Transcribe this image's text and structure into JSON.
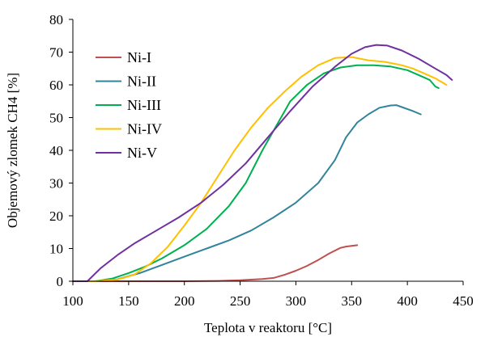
{
  "chart_data": {
    "type": "line",
    "xlabel": "Teplota v reaktoru [°C]",
    "ylabel": "Objemový zlomek CH4 [%]",
    "xlim": [
      100,
      450
    ],
    "ylim": [
      0,
      80
    ],
    "xticks": [
      100,
      150,
      200,
      250,
      300,
      350,
      400,
      450
    ],
    "yticks": [
      0,
      10,
      20,
      30,
      40,
      50,
      60,
      70,
      80
    ],
    "grid": false,
    "legend": "top-left",
    "series": [
      {
        "name": "Ni-I",
        "color": "#C0504D",
        "points": [
          [
            100,
            0
          ],
          [
            150,
            0
          ],
          [
            200,
            0
          ],
          [
            230,
            0.1
          ],
          [
            250,
            0.3
          ],
          [
            270,
            0.7
          ],
          [
            280,
            1.0
          ],
          [
            290,
            2.0
          ],
          [
            300,
            3.2
          ],
          [
            310,
            4.7
          ],
          [
            320,
            6.5
          ],
          [
            330,
            8.5
          ],
          [
            340,
            10.2
          ],
          [
            345,
            10.6
          ],
          [
            355,
            11
          ]
        ]
      },
      {
        "name": "Ni-II",
        "color": "#31849B",
        "points": [
          [
            100,
            0
          ],
          [
            120,
            0
          ],
          [
            140,
            0.6
          ],
          [
            160,
            2.5
          ],
          [
            180,
            5.0
          ],
          [
            200,
            7.5
          ],
          [
            220,
            10.0
          ],
          [
            240,
            12.5
          ],
          [
            260,
            15.5
          ],
          [
            280,
            19.5
          ],
          [
            300,
            24.0
          ],
          [
            320,
            30.0
          ],
          [
            335,
            37.0
          ],
          [
            345,
            44.0
          ],
          [
            355,
            48.5
          ],
          [
            365,
            51.0
          ],
          [
            375,
            53.0
          ],
          [
            385,
            53.7
          ],
          [
            390,
            53.8
          ],
          [
            395,
            53.2
          ],
          [
            405,
            52.0
          ],
          [
            412,
            51.0
          ]
        ]
      },
      {
        "name": "Ni-III",
        "color": "#00B050",
        "points": [
          [
            100,
            0
          ],
          [
            120,
            0
          ],
          [
            135,
            0.8
          ],
          [
            150,
            2.5
          ],
          [
            165,
            4.5
          ],
          [
            180,
            7.0
          ],
          [
            200,
            11.0
          ],
          [
            220,
            16.0
          ],
          [
            240,
            23.0
          ],
          [
            255,
            30.0
          ],
          [
            270,
            40.0
          ],
          [
            285,
            49.0
          ],
          [
            295,
            55.0
          ],
          [
            310,
            60.0
          ],
          [
            325,
            63.5
          ],
          [
            340,
            65.3
          ],
          [
            355,
            66.0
          ],
          [
            370,
            66.0
          ],
          [
            385,
            65.6
          ],
          [
            400,
            64.5
          ],
          [
            410,
            63.0
          ],
          [
            420,
            61.5
          ],
          [
            425,
            59.5
          ],
          [
            428,
            59.0
          ]
        ]
      },
      {
        "name": "Ni-IV",
        "color": "#FFC000",
        "points": [
          [
            100,
            0
          ],
          [
            120,
            0
          ],
          [
            140,
            0.5
          ],
          [
            155,
            2.0
          ],
          [
            170,
            5.5
          ],
          [
            185,
            10.5
          ],
          [
            200,
            17.0
          ],
          [
            215,
            24.0
          ],
          [
            230,
            32.0
          ],
          [
            245,
            40.0
          ],
          [
            260,
            47.0
          ],
          [
            275,
            53.0
          ],
          [
            290,
            58.0
          ],
          [
            305,
            62.5
          ],
          [
            320,
            66.0
          ],
          [
            335,
            68.2
          ],
          [
            350,
            68.5
          ],
          [
            365,
            67.5
          ],
          [
            380,
            67.0
          ],
          [
            395,
            66.0
          ],
          [
            405,
            65.0
          ],
          [
            415,
            63.5
          ],
          [
            425,
            62.0
          ],
          [
            435,
            60.0
          ]
        ]
      },
      {
        "name": "Ni-V",
        "color": "#7030A0",
        "points": [
          [
            100,
            0
          ],
          [
            110,
            0
          ],
          [
            113,
            0
          ],
          [
            125,
            4.0
          ],
          [
            140,
            8.0
          ],
          [
            155,
            11.5
          ],
          [
            175,
            15.5
          ],
          [
            195,
            19.5
          ],
          [
            215,
            24.0
          ],
          [
            235,
            29.5
          ],
          [
            255,
            36.0
          ],
          [
            275,
            44.0
          ],
          [
            295,
            52.0
          ],
          [
            315,
            59.5
          ],
          [
            335,
            65.5
          ],
          [
            350,
            69.5
          ],
          [
            362,
            71.5
          ],
          [
            372,
            72.2
          ],
          [
            382,
            72.0
          ],
          [
            395,
            70.5
          ],
          [
            410,
            68.0
          ],
          [
            425,
            65.0
          ],
          [
            435,
            63.0
          ],
          [
            440,
            61.5
          ]
        ]
      }
    ]
  }
}
